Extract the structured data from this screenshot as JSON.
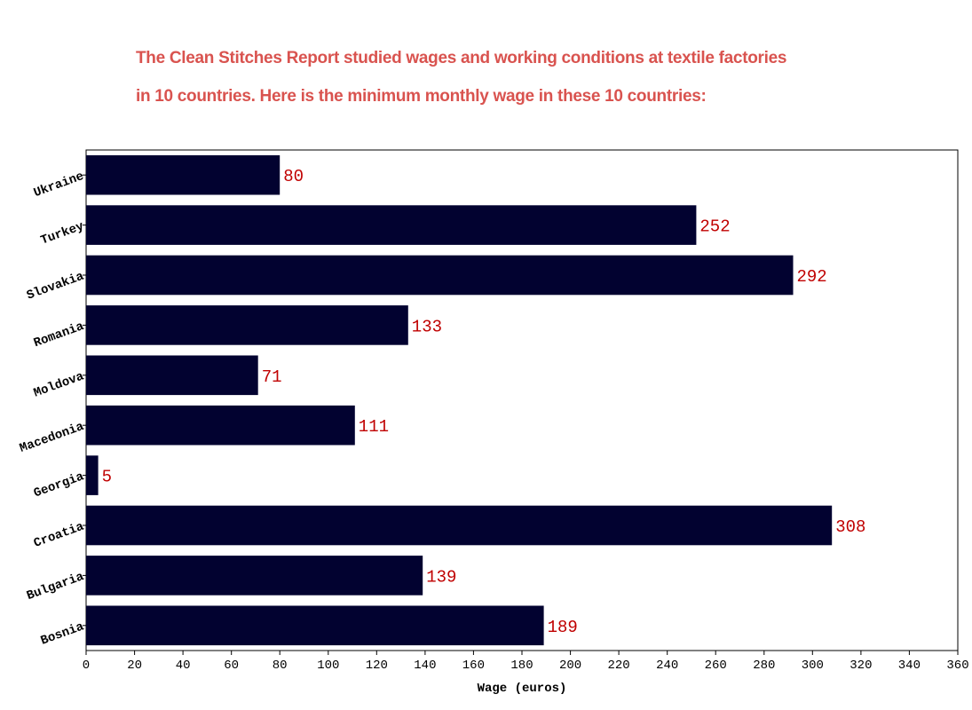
{
  "chart_data": {
    "type": "bar",
    "orientation": "horizontal",
    "title_lines": [
      "The Clean Stitches Report studied wages and working conditions at textile factories",
      "in 10 countries. Here is the minimum monthly wage in these 10 countries:"
    ],
    "categories": [
      "Ukraine",
      "Turkey",
      "Slovakia",
      "Romania",
      "Moldova",
      "Macedonia",
      "Georgia",
      "Croatia",
      "Bulgaria",
      "Bosnia"
    ],
    "values": [
      80,
      252,
      292,
      133,
      71,
      111,
      5,
      308,
      139,
      189
    ],
    "xlabel": "Wage (euros)",
    "ylabel": "",
    "xlim": [
      0,
      360
    ],
    "x_ticks": [
      0,
      20,
      40,
      60,
      80,
      100,
      120,
      140,
      160,
      180,
      200,
      220,
      240,
      260,
      280,
      300,
      320,
      340,
      360
    ],
    "grid": false,
    "data_labels": true,
    "colors": {
      "bar": "#020230",
      "value_label": "#c00000",
      "title": "#d9534f"
    }
  }
}
